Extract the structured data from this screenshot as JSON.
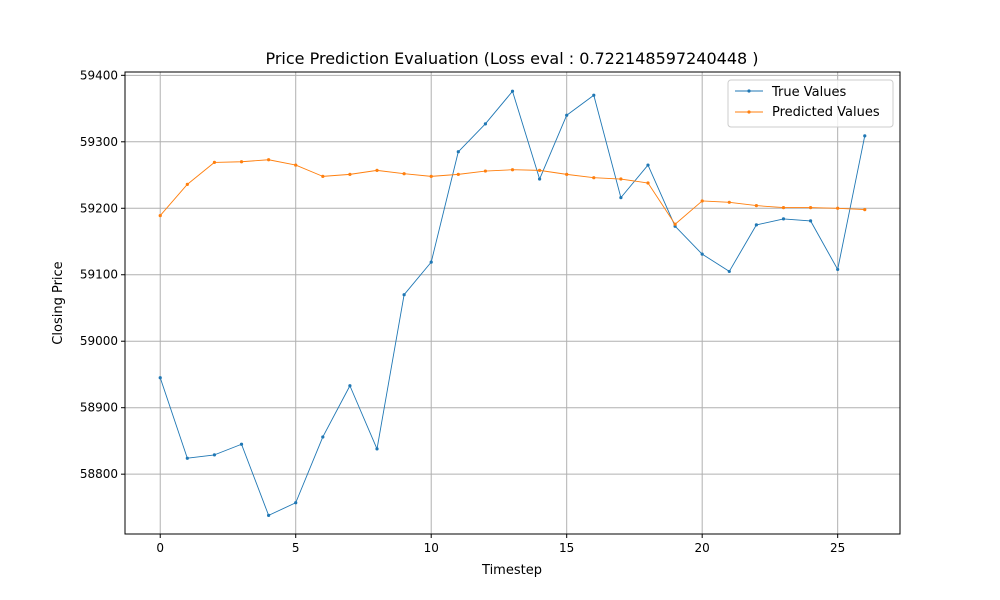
{
  "chart_data": {
    "type": "line",
    "title": "Price Prediction Evaluation (Loss eval : 0.722148597240448 )",
    "xlabel": "Timestep",
    "ylabel": "Closing Price",
    "xlim": [
      -1.3,
      27.3
    ],
    "ylim": [
      58710,
      59405
    ],
    "xticks": [
      0,
      5,
      10,
      15,
      20,
      25
    ],
    "yticks": [
      58800,
      58900,
      59000,
      59100,
      59200,
      59300,
      59400
    ],
    "grid": true,
    "legend_position": "top-right",
    "x": [
      0,
      1,
      2,
      3,
      4,
      5,
      6,
      7,
      8,
      9,
      10,
      11,
      12,
      13,
      14,
      15,
      16,
      17,
      18,
      19,
      20,
      21,
      22,
      23,
      24,
      25,
      26
    ],
    "series": [
      {
        "name": "True Values",
        "color": "#1f77b4",
        "values": [
          58945,
          58824,
          58829,
          58845,
          58738,
          58757,
          58856,
          58933,
          58838,
          59070,
          59119,
          59285,
          59327,
          59376,
          59244,
          59340,
          59370,
          59216,
          59265,
          59173,
          59131,
          59105,
          59175,
          59184,
          59181,
          59108,
          59309
        ]
      },
      {
        "name": "Predicted Values",
        "color": "#ff7f0e",
        "values": [
          59189,
          59236,
          59269,
          59270,
          59273,
          59265,
          59248,
          59251,
          59257,
          59252,
          59248,
          59251,
          59256,
          59258,
          59257,
          59251,
          59246,
          59244,
          59238,
          59176,
          59211,
          59209,
          59204,
          59201,
          59201,
          59200,
          59198
        ]
      }
    ]
  }
}
